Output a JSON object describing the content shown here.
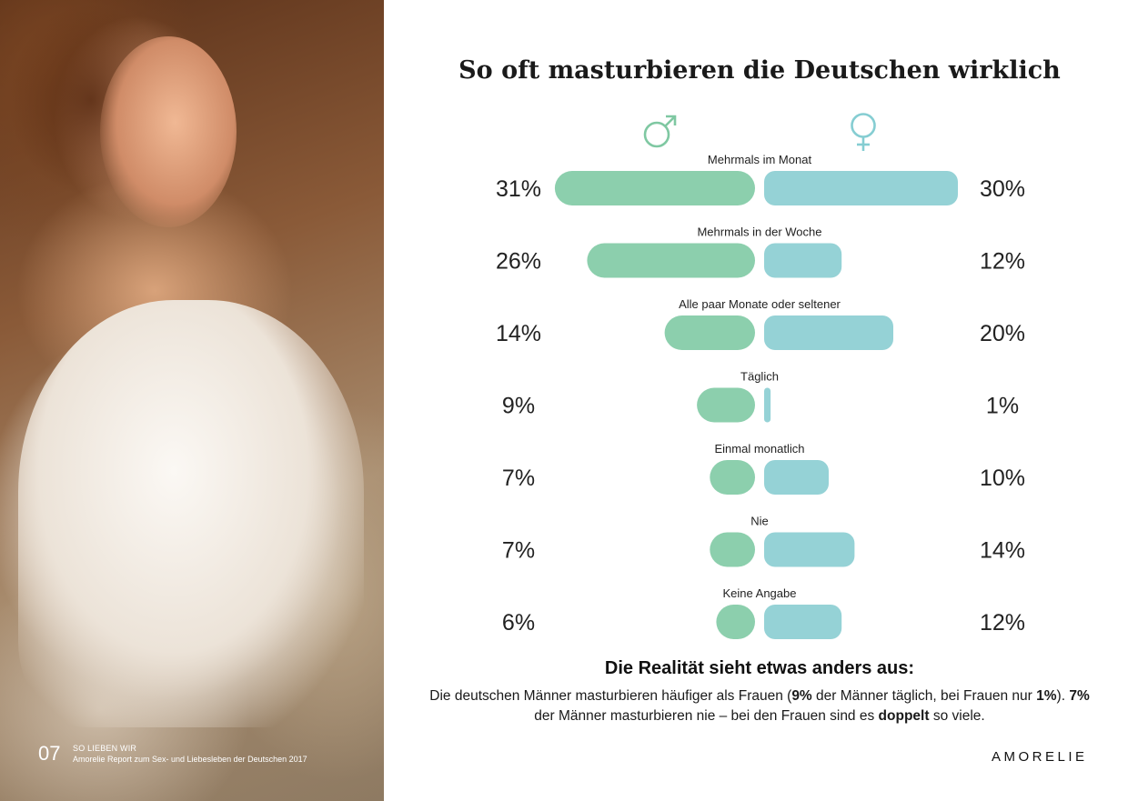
{
  "chart_data": {
    "type": "bar",
    "title": "So oft masturbieren die Deutschen wirklich",
    "categories": [
      "Mehrmals im Monat",
      "Mehrmals in der Woche",
      "Alle paar Monate oder seltener",
      "Täglich",
      "Einmal monatlich",
      "Nie",
      "Keine Angabe"
    ],
    "series": [
      {
        "values": [
          31,
          26,
          14,
          9,
          7,
          7,
          6
        ],
        "color": "#8ccfad",
        "icon": "male-symbol-icon"
      },
      {
        "values": [
          30,
          12,
          20,
          1,
          10,
          14,
          12
        ],
        "color": "#95d2d6",
        "icon": "female-symbol-icon"
      }
    ],
    "value_labels": {
      "male": [
        "31%",
        "26%",
        "14%",
        "9%",
        "7%",
        "7%",
        "6%"
      ],
      "female": [
        "30%",
        "12%",
        "20%",
        "1%",
        "10%",
        "14%",
        "12%"
      ]
    },
    "orientation": "diverging-horizontal",
    "xlabel": "",
    "ylabel": "",
    "grid": false,
    "legend": "icons above bars"
  },
  "conclusion": {
    "heading": "Die Realität sieht etwas anders aus:",
    "segments": [
      {
        "text": "Die deutschen Männer masturbieren häufiger als Frauen (",
        "bold": false
      },
      {
        "text": "9%",
        "bold": true
      },
      {
        "text": " der Männer täglich, bei Frauen nur ",
        "bold": false
      },
      {
        "text": "1%",
        "bold": true
      },
      {
        "text": "). ",
        "bold": false
      },
      {
        "text": "7%",
        "bold": true
      },
      {
        "text": " der Männer masturbieren nie – bei den Frauen sind es ",
        "bold": false
      },
      {
        "text": "doppelt",
        "bold": true
      },
      {
        "text": " so viele.",
        "bold": false
      }
    ]
  },
  "footer": {
    "page_number": "07",
    "section": "SO LIEBEN WIR",
    "report": "Amorelie Report zum Sex- und Liebesleben der Deutschen 2017"
  },
  "brand": "AMORELIE",
  "colors": {
    "male": "#8ccfad",
    "female": "#95d2d6",
    "text": "#1a1a1a"
  }
}
